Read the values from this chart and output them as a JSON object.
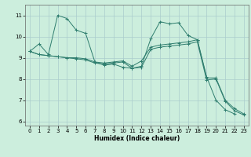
{
  "xlabel": "Humidex (Indice chaleur)",
  "bg_color": "#cceedd",
  "grid_color_major": "#aacccc",
  "grid_color_minor": "#bbdddd",
  "line_color": "#2e7d6e",
  "xlim": [
    -0.5,
    23.5
  ],
  "ylim": [
    5.8,
    11.5
  ],
  "xticks": [
    0,
    1,
    2,
    3,
    4,
    5,
    6,
    7,
    8,
    9,
    10,
    11,
    12,
    13,
    14,
    15,
    16,
    17,
    18,
    19,
    20,
    21,
    22,
    23
  ],
  "yticks": [
    6,
    7,
    8,
    9,
    10,
    11
  ],
  "lines": [
    {
      "x": [
        0,
        1,
        2,
        3,
        4,
        5,
        6,
        7,
        8,
        9,
        10,
        11,
        12,
        13,
        14,
        15,
        16,
        17,
        18,
        19,
        20,
        21,
        22,
        23
      ],
      "y": [
        9.3,
        9.65,
        9.15,
        11.0,
        10.85,
        10.3,
        10.15,
        8.8,
        8.65,
        8.7,
        8.55,
        8.5,
        8.6,
        9.9,
        10.7,
        10.6,
        10.65,
        10.05,
        9.85,
        8.1,
        7.0,
        6.55,
        6.35,
        null
      ]
    },
    {
      "x": [
        0,
        1,
        2,
        3,
        4,
        5,
        6,
        7,
        8,
        9,
        10,
        11,
        12,
        13,
        14,
        15,
        16,
        17,
        18,
        19,
        20,
        21,
        22,
        23
      ],
      "y": [
        9.3,
        9.15,
        9.1,
        9.05,
        9.0,
        9.0,
        8.95,
        8.8,
        8.75,
        8.8,
        8.85,
        8.6,
        8.85,
        9.5,
        9.6,
        9.65,
        9.7,
        9.75,
        9.85,
        8.05,
        8.05,
        7.0,
        6.6,
        6.35
      ]
    },
    {
      "x": [
        0,
        1,
        2,
        3,
        4,
        5,
        6,
        7,
        8,
        9,
        10,
        11,
        12,
        13,
        14,
        15,
        16,
        17,
        18,
        19,
        20,
        21,
        22,
        23
      ],
      "y": [
        9.3,
        9.15,
        9.1,
        9.05,
        9.0,
        8.95,
        8.9,
        8.75,
        8.7,
        8.75,
        8.8,
        8.5,
        8.55,
        9.4,
        9.5,
        9.55,
        9.6,
        9.65,
        9.75,
        7.95,
        8.0,
        6.95,
        6.5,
        6.3
      ]
    }
  ]
}
